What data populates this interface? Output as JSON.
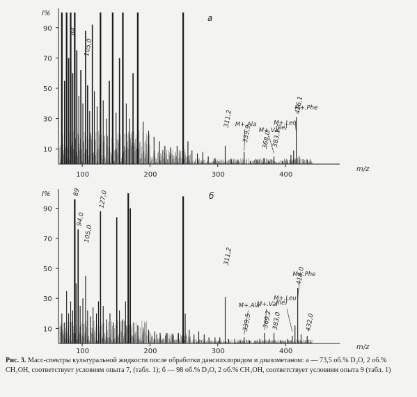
{
  "chart_data": [
    {
      "type": "bar",
      "panel_label": "a",
      "ylabel": "I%",
      "xlabel": "m/z",
      "xlim": [
        65,
        480
      ],
      "ylim": [
        0,
        100
      ],
      "yticks": [
        10,
        30,
        50,
        70,
        90
      ],
      "yticklabels": [
        "10",
        "30",
        "50",
        "70",
        "90"
      ],
      "xticks": [
        100,
        200,
        300,
        400
      ],
      "xticklabels": [
        "100",
        "200",
        "300",
        "400"
      ],
      "grid": false,
      "peaks": [
        {
          "x": 70,
          "y": 100
        },
        {
          "x": 74,
          "y": 55
        },
        {
          "x": 77,
          "y": 100
        },
        {
          "x": 80,
          "y": 70
        },
        {
          "x": 83,
          "y": 100
        },
        {
          "x": 86,
          "y": 60
        },
        {
          "x": 89,
          "y": 100
        },
        {
          "x": 92,
          "y": 75
        },
        {
          "x": 95,
          "y": 45
        },
        {
          "x": 98,
          "y": 62
        },
        {
          "x": 101,
          "y": 40
        },
        {
          "x": 105,
          "y": 88
        },
        {
          "x": 108,
          "y": 52
        },
        {
          "x": 111,
          "y": 35
        },
        {
          "x": 115,
          "y": 92
        },
        {
          "x": 118,
          "y": 48
        },
        {
          "x": 122,
          "y": 38
        },
        {
          "x": 127,
          "y": 100
        },
        {
          "x": 131,
          "y": 42
        },
        {
          "x": 136,
          "y": 30
        },
        {
          "x": 140,
          "y": 55
        },
        {
          "x": 145,
          "y": 100
        },
        {
          "x": 150,
          "y": 34
        },
        {
          "x": 155,
          "y": 70
        },
        {
          "x": 160,
          "y": 100
        },
        {
          "x": 165,
          "y": 40
        },
        {
          "x": 170,
          "y": 30
        },
        {
          "x": 175,
          "y": 60
        },
        {
          "x": 182,
          "y": 100
        },
        {
          "x": 190,
          "y": 28
        },
        {
          "x": 198,
          "y": 22
        },
        {
          "x": 206,
          "y": 18
        },
        {
          "x": 214,
          "y": 15
        },
        {
          "x": 222,
          "y": 12
        },
        {
          "x": 230,
          "y": 11
        },
        {
          "x": 240,
          "y": 12
        },
        {
          "x": 249,
          "y": 100
        },
        {
          "x": 256,
          "y": 15
        },
        {
          "x": 262,
          "y": 9
        },
        {
          "x": 270,
          "y": 7
        },
        {
          "x": 278,
          "y": 8
        },
        {
          "x": 286,
          "y": 5
        },
        {
          "x": 296,
          "y": 4
        },
        {
          "x": 311,
          "y": 12
        },
        {
          "x": 320,
          "y": 3
        },
        {
          "x": 330,
          "y": 3
        },
        {
          "x": 339,
          "y": 8
        },
        {
          "x": 348,
          "y": 2
        },
        {
          "x": 358,
          "y": 3
        },
        {
          "x": 368,
          "y": 4
        },
        {
          "x": 375,
          "y": 2
        },
        {
          "x": 383,
          "y": 5
        },
        {
          "x": 395,
          "y": 2
        },
        {
          "x": 402,
          "y": 3
        },
        {
          "x": 408,
          "y": 6
        },
        {
          "x": 412,
          "y": 9
        },
        {
          "x": 416,
          "y": 31
        },
        {
          "x": 420,
          "y": 5
        },
        {
          "x": 432,
          "y": 3
        }
      ],
      "annotations": [
        {
          "x": 84,
          "y": 84,
          "text": "84"
        },
        {
          "x": 105,
          "y": 70,
          "text": "105,0"
        },
        {
          "x": 311,
          "y": 23,
          "text": "311,2"
        },
        {
          "x": 339,
          "y": 13,
          "text": "339,9"
        },
        {
          "x": 368,
          "y": 9,
          "text": "368,0"
        },
        {
          "x": 383,
          "y": 10,
          "text": "383,1"
        },
        {
          "x": 416,
          "y": 32,
          "text": "416,1"
        }
      ],
      "ion_labels": [
        {
          "x": 340,
          "y": 25,
          "text": "M+.Ala"
        },
        {
          "x": 375,
          "y": 21,
          "text": "M+.Val"
        },
        {
          "x": 397,
          "y": 26,
          "text": "M+.Leu"
        },
        {
          "x": 400,
          "y": 23,
          "text": "(Ile)"
        },
        {
          "x": 428,
          "y": 36,
          "text": "M+.Phe"
        }
      ]
    },
    {
      "type": "bar",
      "panel_label": "б",
      "ylabel": "I%",
      "xlabel": "m/z",
      "xlim": [
        65,
        480
      ],
      "ylim": [
        0,
        100
      ],
      "yticks": [
        10,
        30,
        50,
        70,
        90
      ],
      "yticklabels": [
        "10",
        "30",
        "50",
        "70",
        "90"
      ],
      "xticks": [
        100,
        200,
        300,
        400
      ],
      "xticklabels": [
        "100",
        "200",
        "300",
        "400"
      ],
      "grid": false,
      "peaks": [
        {
          "x": 70,
          "y": 20
        },
        {
          "x": 74,
          "y": 14
        },
        {
          "x": 77,
          "y": 35
        },
        {
          "x": 80,
          "y": 20
        },
        {
          "x": 83,
          "y": 28
        },
        {
          "x": 86,
          "y": 22
        },
        {
          "x": 89,
          "y": 96
        },
        {
          "x": 91,
          "y": 40
        },
        {
          "x": 94,
          "y": 76
        },
        {
          "x": 97,
          "y": 25
        },
        {
          "x": 101,
          "y": 30
        },
        {
          "x": 105,
          "y": 45
        },
        {
          "x": 108,
          "y": 22
        },
        {
          "x": 112,
          "y": 18
        },
        {
          "x": 116,
          "y": 24
        },
        {
          "x": 121,
          "y": 20
        },
        {
          "x": 124,
          "y": 28
        },
        {
          "x": 127,
          "y": 88
        },
        {
          "x": 131,
          "y": 25
        },
        {
          "x": 136,
          "y": 16
        },
        {
          "x": 141,
          "y": 20
        },
        {
          "x": 146,
          "y": 14
        },
        {
          "x": 151,
          "y": 84
        },
        {
          "x": 155,
          "y": 22
        },
        {
          "x": 160,
          "y": 16
        },
        {
          "x": 164,
          "y": 28
        },
        {
          "x": 168,
          "y": 100
        },
        {
          "x": 171,
          "y": 90
        },
        {
          "x": 176,
          "y": 14
        },
        {
          "x": 182,
          "y": 12
        },
        {
          "x": 190,
          "y": 10
        },
        {
          "x": 198,
          "y": 9
        },
        {
          "x": 207,
          "y": 8
        },
        {
          "x": 215,
          "y": 7
        },
        {
          "x": 224,
          "y": 7
        },
        {
          "x": 234,
          "y": 6
        },
        {
          "x": 242,
          "y": 7
        },
        {
          "x": 249,
          "y": 98
        },
        {
          "x": 252,
          "y": 20
        },
        {
          "x": 258,
          "y": 9
        },
        {
          "x": 265,
          "y": 6
        },
        {
          "x": 272,
          "y": 8
        },
        {
          "x": 280,
          "y": 6
        },
        {
          "x": 287,
          "y": 4
        },
        {
          "x": 296,
          "y": 4
        },
        {
          "x": 303,
          "y": 4
        },
        {
          "x": 311,
          "y": 31
        },
        {
          "x": 316,
          "y": 3
        },
        {
          "x": 325,
          "y": 3
        },
        {
          "x": 333,
          "y": 2
        },
        {
          "x": 339,
          "y": 4
        },
        {
          "x": 347,
          "y": 2
        },
        {
          "x": 355,
          "y": 2
        },
        {
          "x": 362,
          "y": 3
        },
        {
          "x": 369,
          "y": 7
        },
        {
          "x": 376,
          "y": 3
        },
        {
          "x": 383,
          "y": 7
        },
        {
          "x": 393,
          "y": 2
        },
        {
          "x": 403,
          "y": 3
        },
        {
          "x": 410,
          "y": 5
        },
        {
          "x": 414,
          "y": 12
        },
        {
          "x": 418,
          "y": 37
        },
        {
          "x": 423,
          "y": 6
        },
        {
          "x": 432,
          "y": 5
        }
      ],
      "annotations": [
        {
          "x": 89,
          "y": 97,
          "text": "89"
        },
        {
          "x": 94,
          "y": 77,
          "text": "94,0"
        },
        {
          "x": 105,
          "y": 66,
          "text": "105,0"
        },
        {
          "x": 127,
          "y": 89,
          "text": "127,0"
        },
        {
          "x": 311,
          "y": 51,
          "text": "311,2"
        },
        {
          "x": 339,
          "y": 7,
          "text": "339,5"
        },
        {
          "x": 369,
          "y": 9,
          "text": "369,2"
        },
        {
          "x": 383,
          "y": 8,
          "text": "383,0"
        },
        {
          "x": 418,
          "y": 38,
          "text": "418,0"
        },
        {
          "x": 432,
          "y": 7,
          "text": "432,0"
        }
      ],
      "ion_labels": [
        {
          "x": 345,
          "y": 24,
          "text": "M+.Ala"
        },
        {
          "x": 372,
          "y": 25,
          "text": "M+.Val"
        },
        {
          "x": 397,
          "y": 29,
          "text": "M+.Leu"
        },
        {
          "x": 400,
          "y": 26,
          "text": "(Ile)"
        },
        {
          "x": 425,
          "y": 45,
          "text": "M+.Phe"
        }
      ]
    }
  ],
  "caption": {
    "prefix": "Рис. 3.",
    "text": " Масс-спектры культуральной жидкости после обработки дансилхлоридом и диазометаном: а — 73,5 об.% D₂O, 2 об.% CH₃OH, соответствует условиям опыта 7, (табл. 1); б — 98 об.% D₂O, 2 об.% CH₃OH, соответствует условиям опыта 9 (табл. 1)"
  }
}
